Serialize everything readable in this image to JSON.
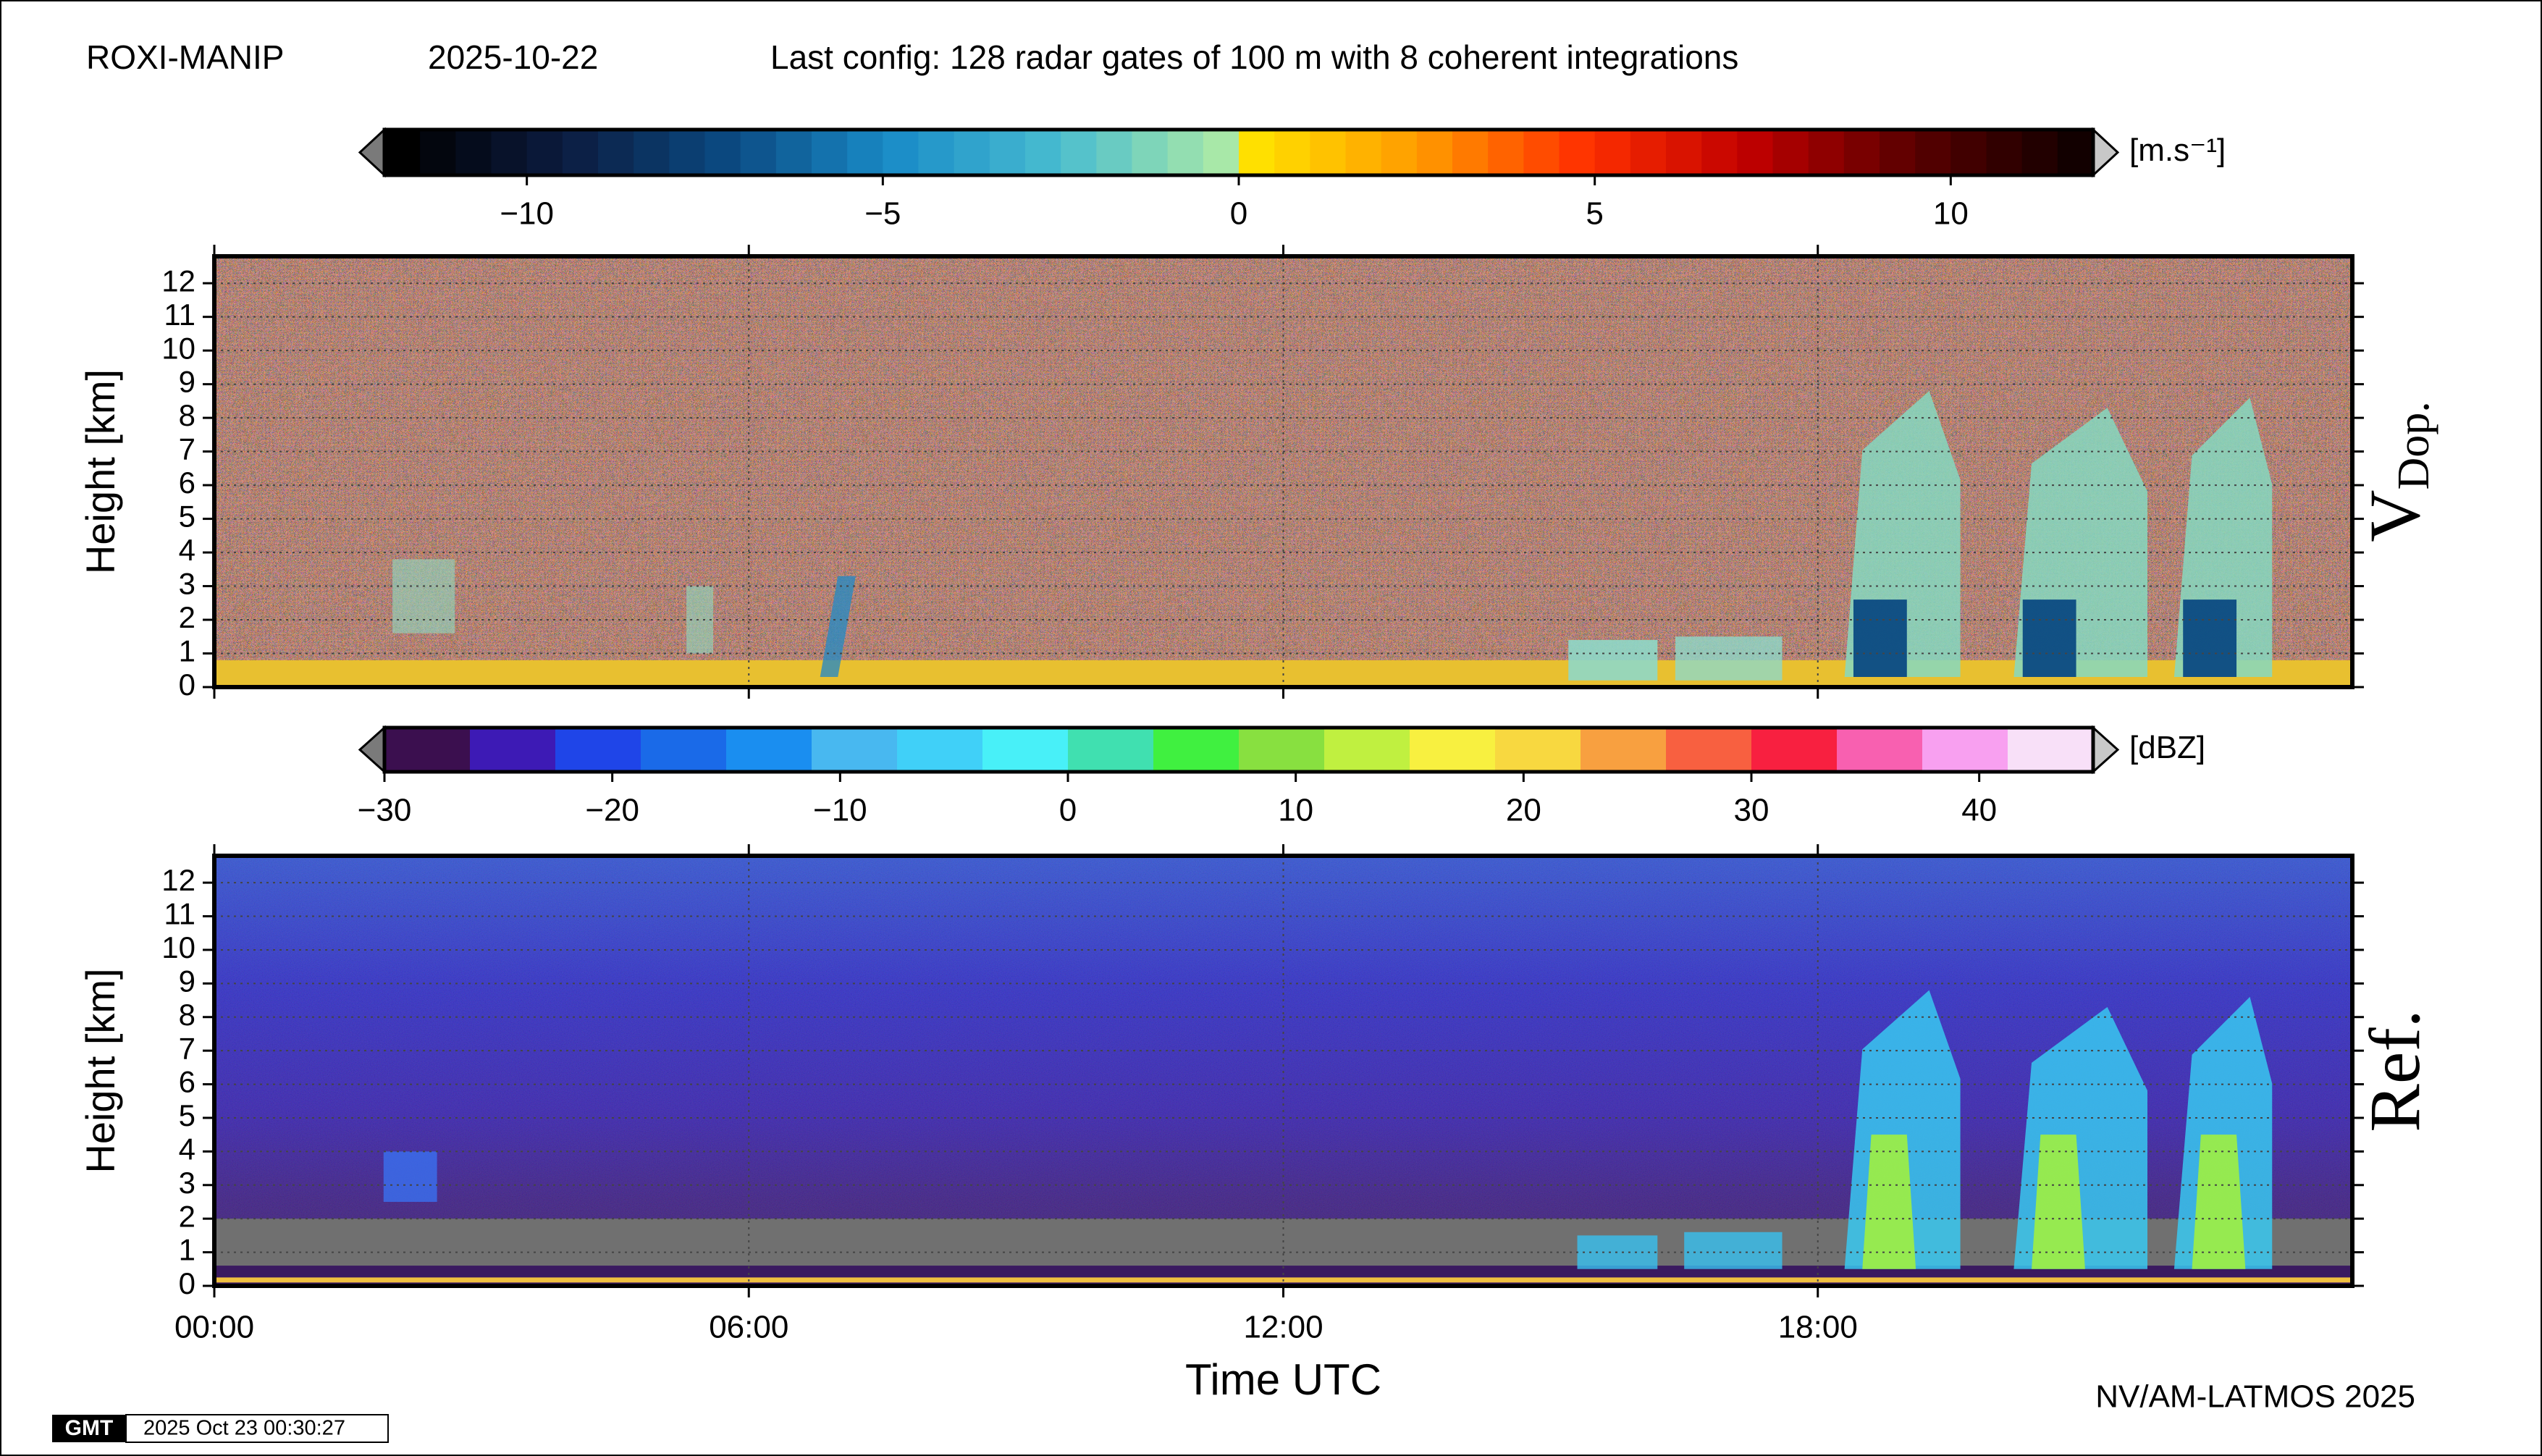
{
  "header": {
    "site": "ROXI-MANIP",
    "date": "2025-10-22",
    "config": "Last config: 128 radar gates of 100 m with 8 coherent integrations"
  },
  "footer": {
    "credit": "NV/AM-LATMOS 2025",
    "logo": "GMT",
    "timestamp": "2025 Oct 23 00:30:27"
  },
  "chart_data": [
    {
      "type": "heatmap",
      "ylabel": "Height [km]",
      "panel_label": "V",
      "panel_label_sub": "Dop.",
      "xlim": [
        0,
        24
      ],
      "ylim": [
        0,
        12.8
      ],
      "yticks": [
        0,
        1,
        2,
        3,
        4,
        5,
        6,
        7,
        8,
        9,
        10,
        11,
        12
      ],
      "grid": true,
      "colorbar": {
        "label": "[m.s⁻¹]",
        "lim": [
          -12,
          12
        ],
        "steps": 48,
        "colors_negative": [
          "#000000",
          "#0c1c40",
          "#0b4a82",
          "#1a8cc8",
          "#48bcd0",
          "#a8e8a8"
        ],
        "colors_positive": [
          "#ffe000",
          "#ff9a00",
          "#ff3000",
          "#c00000",
          "#5a0000",
          "#120000"
        ],
        "ticks": [
          {
            "value": -10,
            "label": "−10"
          },
          {
            "value": -5,
            "label": "−5"
          },
          0,
          5,
          10
        ],
        "extend_colors": [
          "#7a7a7a",
          "#c8c8c8"
        ]
      }
    },
    {
      "type": "heatmap",
      "ylabel": "Height [km]",
      "xlabel": "Time UTC",
      "panel_label": "Ref.",
      "xlim": [
        0,
        24
      ],
      "ylim": [
        0,
        12.8
      ],
      "yticks": [
        0,
        1,
        2,
        3,
        4,
        5,
        6,
        7,
        8,
        9,
        10,
        11,
        12
      ],
      "grid": true,
      "xticks": [
        {
          "value": 0,
          "label": "00:00"
        },
        {
          "value": 6,
          "label": "06:00"
        },
        {
          "value": 12,
          "label": "12:00"
        },
        {
          "value": 18,
          "label": "18:00"
        }
      ],
      "colorbar": {
        "label": "[dBZ]",
        "lim": [
          -30,
          45
        ],
        "colors": [
          "#3b0f4f",
          "#3d1ab5",
          "#1f45e8",
          "#1a6ae8",
          "#1a8ef0",
          "#48b8f0",
          "#40d0f8",
          "#48f0f8",
          "#40e0b0",
          "#40f040",
          "#88e040",
          "#c0f040",
          "#f8f040",
          "#f8d840",
          "#f8a040",
          "#f86040",
          "#f82040",
          "#f860b0",
          "#f8a0f0",
          "#f8e0f8"
        ],
        "ticks": [
          {
            "value": -30,
            "label": "−30"
          },
          {
            "value": -20,
            "label": "−20"
          },
          {
            "value": -10,
            "label": "−10"
          },
          0,
          10,
          20,
          30,
          40
        ],
        "extend_colors": [
          "#7a7a7a",
          "#c8c8c8"
        ]
      }
    }
  ]
}
